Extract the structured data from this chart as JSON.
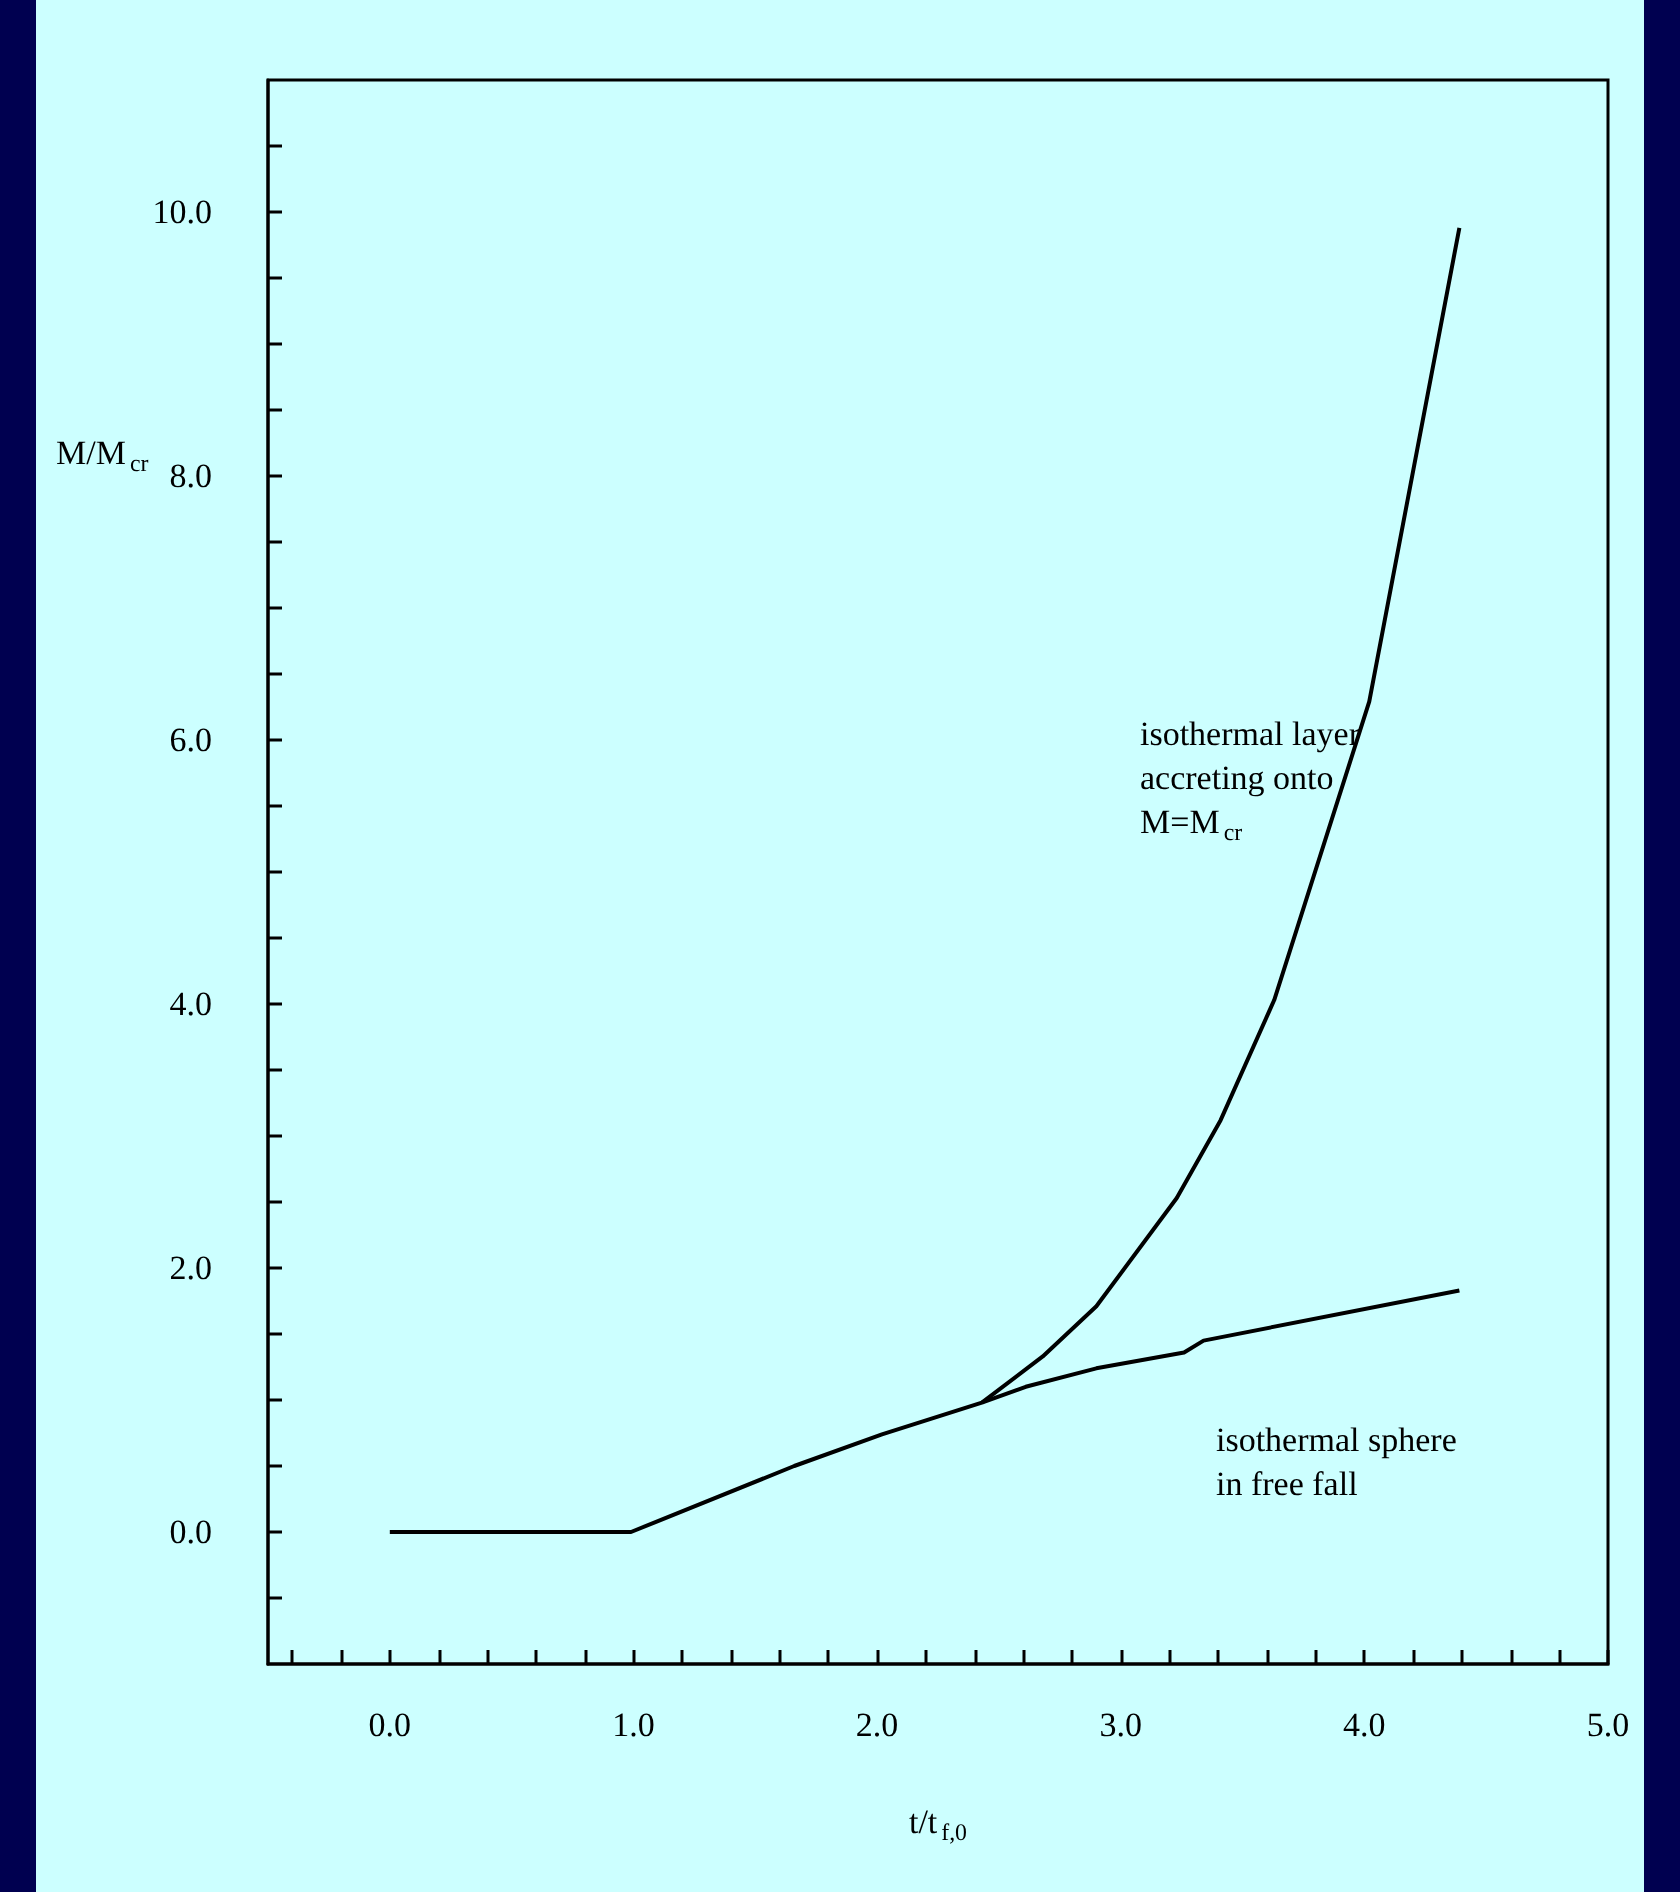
{
  "chart_data": {
    "type": "line",
    "xlabel": "t/t$_{f,0}$",
    "ylabel": "M/M$_{cr}$",
    "xlim": [
      -0.5,
      5.0
    ],
    "ylim": [
      -1.0,
      11.0
    ],
    "xticks": [
      {
        "value": -0.4,
        "label": null
      },
      {
        "value": -0.2,
        "label": null
      },
      {
        "value": 0,
        "label": "0.0"
      },
      {
        "value": 0.2,
        "label": null
      },
      {
        "value": 0.4,
        "label": null
      },
      {
        "value": 0.6,
        "label": null
      },
      {
        "value": 0.8,
        "label": null
      },
      {
        "value": 1,
        "label": "1.0"
      },
      {
        "value": 1.2,
        "label": null
      },
      {
        "value": 1.4,
        "label": null
      },
      {
        "value": 1.6,
        "label": null
      },
      {
        "value": 1.8,
        "label": null
      },
      {
        "value": 2,
        "label": "2.0"
      },
      {
        "value": 2.2,
        "label": null
      },
      {
        "value": 2.4,
        "label": null
      },
      {
        "value": 2.6,
        "label": null
      },
      {
        "value": 2.8,
        "label": null
      },
      {
        "value": 3,
        "label": "3.0"
      },
      {
        "value": 3.2,
        "label": null
      },
      {
        "value": 3.4,
        "label": null
      },
      {
        "value": 3.6,
        "label": null
      },
      {
        "value": 3.8,
        "label": null
      },
      {
        "value": 4,
        "label": "4.0"
      },
      {
        "value": 4.2,
        "label": null
      },
      {
        "value": 4.4,
        "label": null
      },
      {
        "value": 4.6,
        "label": null
      },
      {
        "value": 4.8,
        "label": null
      },
      {
        "value": 5,
        "label": "5.0"
      }
    ],
    "yticks": [
      {
        "value": -0.5,
        "label": null
      },
      {
        "value": 0,
        "label": "0.0"
      },
      {
        "value": 0.5,
        "label": null
      },
      {
        "value": 1,
        "label": null
      },
      {
        "value": 1.5,
        "label": null
      },
      {
        "value": 2,
        "label": "2.0"
      },
      {
        "value": 2.5,
        "label": null
      },
      {
        "value": 3,
        "label": null
      },
      {
        "value": 3.5,
        "label": null
      },
      {
        "value": 4,
        "label": "4.0"
      },
      {
        "value": 4.5,
        "label": null
      },
      {
        "value": 5,
        "label": null
      },
      {
        "value": 5.5,
        "label": null
      },
      {
        "value": 6,
        "label": "6.0"
      },
      {
        "value": 6.5,
        "label": null
      },
      {
        "value": 7,
        "label": null
      },
      {
        "value": 7.5,
        "label": null
      },
      {
        "value": 8,
        "label": "8.0"
      },
      {
        "value": 8.5,
        "label": null
      },
      {
        "value": 9,
        "label": null
      },
      {
        "value": 9.5,
        "label": null
      },
      {
        "value": 10,
        "label": "10.0"
      },
      {
        "value": 10.5,
        "label": null
      }
    ],
    "marker": "none",
    "line_style": "solid",
    "series": [
      {
        "color": "#000000",
        "x": [
          0,
          0.99,
          1.66,
          2.02,
          2.43,
          2.61,
          2.9,
          3.26,
          3.34,
          4.39
        ],
        "values": [
          0,
          0,
          0.5,
          0.74,
          0.98,
          1.1,
          1.24,
          1.36,
          1.45,
          1.83
        ]
      },
      {
        "color": "#000000",
        "x": [
          2.43,
          2.68,
          2.9,
          3.23,
          3.41,
          3.63,
          4.02,
          4.39
        ],
        "values": [
          0.98,
          1.33,
          1.71,
          2.53,
          3.12,
          4.03,
          6.29,
          9.88
        ]
      }
    ],
    "annotations": [
      "isothermal layer\naccreting onto\nM=M$_{cr}$",
      "isothermal sphere\nin free fall"
    ]
  }
}
